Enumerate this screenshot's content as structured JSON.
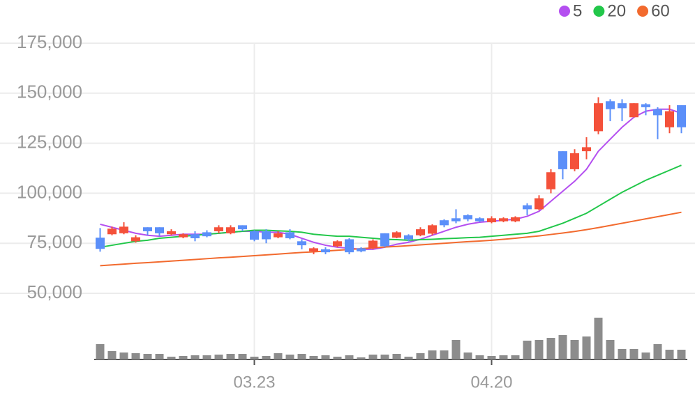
{
  "chart_data": {
    "type": "candlestick",
    "categories": [
      null,
      null,
      null,
      null,
      null,
      null,
      null,
      null,
      null,
      null,
      null,
      null,
      null,
      "03.23",
      null,
      null,
      null,
      null,
      null,
      null,
      null,
      null,
      null,
      null,
      null,
      null,
      null,
      null,
      null,
      null,
      null,
      null,
      null,
      "04.20",
      null,
      null,
      null,
      null,
      null,
      null,
      null,
      null,
      null,
      null,
      null,
      null,
      null,
      null,
      null,
      null
    ],
    "open": [
      77800,
      79500,
      80000,
      76000,
      83000,
      83000,
      79500,
      78000,
      79500,
      80500,
      81000,
      80000,
      84000,
      81000,
      81000,
      78000,
      80500,
      76000,
      71000,
      72000,
      73500,
      77000,
      72500,
      72500,
      80000,
      77800,
      79000,
      79000,
      79800,
      86500,
      87500,
      89000,
      87500,
      85500,
      86000,
      86000,
      94000,
      92000,
      102000,
      121000,
      112000,
      121000,
      131000,
      146000,
      145000,
      138000,
      144500,
      142000,
      133000,
      144000
    ],
    "high": [
      82600,
      83300,
      85500,
      79000,
      83000,
      83000,
      82000,
      80000,
      81000,
      81500,
      84000,
      84000,
      84000,
      81500,
      82000,
      81000,
      82000,
      77000,
      73000,
      73000,
      76500,
      77500,
      73000,
      77000,
      80000,
      81000,
      79500,
      83000,
      84500,
      87000,
      92000,
      89500,
      88000,
      88500,
      88000,
      88500,
      95000,
      99000,
      112000,
      121000,
      122000,
      128000,
      148000,
      147000,
      147000,
      145000,
      145000,
      143000,
      144000,
      144000
    ],
    "low": [
      70800,
      79000,
      79500,
      75300,
      79000,
      78500,
      79000,
      77500,
      76000,
      78000,
      80000,
      79500,
      81000,
      76000,
      75000,
      77500,
      77000,
      72000,
      69500,
      69500,
      73000,
      69500,
      70500,
      72000,
      73000,
      77500,
      76000,
      78500,
      79000,
      83000,
      85000,
      86000,
      85500,
      85000,
      85500,
      85500,
      89000,
      91500,
      100000,
      107000,
      111000,
      117000,
      129500,
      136000,
      136000,
      138000,
      139000,
      127000,
      130000,
      130000
    ],
    "close": [
      72200,
      82300,
      83300,
      78000,
      81000,
      80000,
      81000,
      79500,
      77500,
      78500,
      83000,
      83000,
      82000,
      76800,
      77000,
      80000,
      77500,
      74000,
      72500,
      70500,
      76000,
      70500,
      71000,
      76300,
      73500,
      80500,
      77000,
      82000,
      84000,
      84000,
      86000,
      87000,
      86000,
      87500,
      87500,
      88000,
      92000,
      97500,
      110500,
      112000,
      120000,
      123000,
      145000,
      142000,
      142500,
      145000,
      143000,
      139000,
      141000,
      133000
    ],
    "up_color": "#f4513a",
    "down_color": "#5b8ff9",
    "overlays": [
      {
        "name": "5",
        "color": "#b44ff0",
        "values": [
          84500,
          83000,
          81500,
          80000,
          79000,
          78500,
          79000,
          79500,
          79500,
          79500,
          80000,
          80500,
          81000,
          81000,
          80500,
          80500,
          79500,
          77500,
          75500,
          74000,
          73000,
          72500,
          72000,
          72000,
          73000,
          74500,
          75500,
          77000,
          79000,
          81000,
          83000,
          84500,
          85500,
          86000,
          86500,
          87000,
          88500,
          91000,
          96000,
          101000,
          106000,
          112000,
          121000,
          127000,
          133000,
          138000,
          141000,
          142000,
          142000,
          140000
        ]
      },
      {
        "name": "20",
        "color": "#22c74a",
        "values": [
          73000,
          74000,
          75000,
          76000,
          76500,
          77500,
          78000,
          78500,
          79000,
          79500,
          80000,
          80500,
          81000,
          81500,
          81500,
          81200,
          81000,
          80500,
          79500,
          79000,
          78500,
          78500,
          78000,
          77500,
          77000,
          76800,
          76500,
          76800,
          77000,
          77300,
          77500,
          77800,
          78000,
          78500,
          79000,
          79500,
          80000,
          81000,
          83000,
          85000,
          87500,
          90000,
          93500,
          97000,
          100500,
          103500,
          106500,
          109000,
          111500,
          114000
        ]
      },
      {
        "name": "60",
        "color": "#f26a2e",
        "values": [
          63800,
          64200,
          64600,
          65000,
          65300,
          65700,
          66100,
          66500,
          66900,
          67300,
          67700,
          68000,
          68400,
          68800,
          69200,
          69600,
          70000,
          70400,
          70700,
          71100,
          71500,
          71900,
          72300,
          72700,
          73100,
          73400,
          73800,
          74200,
          74600,
          75000,
          75400,
          75800,
          76100,
          76500,
          77000,
          77500,
          78100,
          78700,
          79400,
          80100,
          80900,
          81800,
          82800,
          83900,
          85000,
          86100,
          87200,
          88300,
          89400,
          90500
        ]
      }
    ],
    "volume": {
      "color": "#8c8c8c",
      "values": [
        22,
        12,
        10,
        9,
        8,
        8,
        4,
        5,
        6,
        6,
        7,
        8,
        8,
        4,
        5,
        9,
        7,
        8,
        5,
        6,
        4,
        6,
        3,
        7,
        7,
        8,
        4,
        9,
        13,
        13,
        28,
        10,
        6,
        5,
        6,
        6,
        27,
        28,
        31,
        35,
        28,
        33,
        60,
        28,
        15,
        15,
        10,
        22,
        14,
        14
      ]
    },
    "ylim": [
      50000,
      175000
    ],
    "yticks": [
      {
        "value": 50000,
        "label": "50,000"
      },
      {
        "value": 75000,
        "label": "75,000"
      },
      {
        "value": 100000,
        "label": "100,000"
      },
      {
        "value": 125000,
        "label": "125,000"
      },
      {
        "value": 150000,
        "label": "150,000"
      },
      {
        "value": 175000,
        "label": "175,000"
      }
    ],
    "grid": true
  }
}
